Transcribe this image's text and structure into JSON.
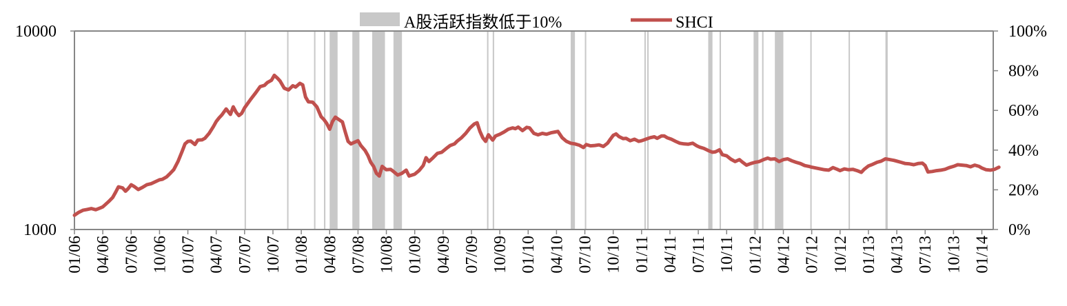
{
  "chart_data": {
    "type": "line",
    "title": "",
    "legend": {
      "placement": "top",
      "shade_label": "A股活跃指数低于10%",
      "line_label": "SHCI"
    },
    "colors": {
      "line": "#c0504d",
      "shade": "#c8c8c8",
      "axis": "#868686"
    },
    "x_ticks": [
      "01/06",
      "04/06",
      "07/06",
      "10/06",
      "01/07",
      "04/07",
      "07/07",
      "10/07",
      "01/08",
      "04/08",
      "07/08",
      "10/08",
      "01/09",
      "04/09",
      "07/09",
      "10/09",
      "01/10",
      "04/10",
      "07/10",
      "10/10",
      "01/11",
      "04/11",
      "07/11",
      "10/11",
      "01/12",
      "04/12",
      "07/12",
      "10/12",
      "01/13",
      "04/13",
      "07/13",
      "10/13",
      "01/14"
    ],
    "y_left": {
      "scale": "log",
      "min": 1000,
      "max": 10000,
      "ticks": [
        "1000",
        "10000"
      ]
    },
    "y_right": {
      "min": 0,
      "max": 100,
      "ticks": [
        "0%",
        "20%",
        "40%",
        "60%",
        "80%",
        "100%"
      ]
    },
    "x_range_quarters": [
      0,
      32.9
    ],
    "series": [
      {
        "name": "SHCI",
        "axis": "left",
        "points": [
          [
            0.0,
            1180
          ],
          [
            0.15,
            1220
          ],
          [
            0.3,
            1250
          ],
          [
            0.45,
            1262
          ],
          [
            0.6,
            1275
          ],
          [
            0.75,
            1258
          ],
          [
            0.9,
            1282
          ],
          [
            1.0,
            1300
          ],
          [
            1.2,
            1380
          ],
          [
            1.35,
            1450
          ],
          [
            1.45,
            1540
          ],
          [
            1.55,
            1640
          ],
          [
            1.7,
            1620
          ],
          [
            1.8,
            1560
          ],
          [
            1.9,
            1610
          ],
          [
            2.0,
            1680
          ],
          [
            2.1,
            1650
          ],
          [
            2.25,
            1590
          ],
          [
            2.4,
            1630
          ],
          [
            2.55,
            1680
          ],
          [
            2.7,
            1700
          ],
          [
            2.85,
            1740
          ],
          [
            3.0,
            1780
          ],
          [
            3.1,
            1790
          ],
          [
            3.25,
            1840
          ],
          [
            3.35,
            1900
          ],
          [
            3.5,
            2000
          ],
          [
            3.65,
            2200
          ],
          [
            3.8,
            2480
          ],
          [
            3.9,
            2700
          ],
          [
            4.0,
            2780
          ],
          [
            4.1,
            2790
          ],
          [
            4.25,
            2680
          ],
          [
            4.35,
            2820
          ],
          [
            4.5,
            2830
          ],
          [
            4.6,
            2880
          ],
          [
            4.75,
            3050
          ],
          [
            4.9,
            3300
          ],
          [
            5.0,
            3500
          ],
          [
            5.1,
            3650
          ],
          [
            5.2,
            3780
          ],
          [
            5.35,
            4050
          ],
          [
            5.5,
            3800
          ],
          [
            5.6,
            4150
          ],
          [
            5.7,
            3900
          ],
          [
            5.8,
            3750
          ],
          [
            5.9,
            3850
          ],
          [
            6.0,
            4100
          ],
          [
            6.2,
            4500
          ],
          [
            6.4,
            4900
          ],
          [
            6.55,
            5250
          ],
          [
            6.7,
            5320
          ],
          [
            6.8,
            5500
          ],
          [
            6.95,
            5650
          ],
          [
            7.05,
            5980
          ],
          [
            7.15,
            5800
          ],
          [
            7.25,
            5600
          ],
          [
            7.4,
            5150
          ],
          [
            7.55,
            5050
          ],
          [
            7.7,
            5300
          ],
          [
            7.8,
            5220
          ],
          [
            7.95,
            5450
          ],
          [
            8.05,
            5350
          ],
          [
            8.15,
            4650
          ],
          [
            8.25,
            4400
          ],
          [
            8.4,
            4380
          ],
          [
            8.55,
            4150
          ],
          [
            8.7,
            3700
          ],
          [
            8.8,
            3580
          ],
          [
            8.9,
            3420
          ],
          [
            9.0,
            3200
          ],
          [
            9.1,
            3500
          ],
          [
            9.2,
            3680
          ],
          [
            9.3,
            3600
          ],
          [
            9.45,
            3480
          ],
          [
            9.55,
            3100
          ],
          [
            9.65,
            2780
          ],
          [
            9.75,
            2700
          ],
          [
            9.85,
            2740
          ],
          [
            10.0,
            2800
          ],
          [
            10.1,
            2650
          ],
          [
            10.25,
            2500
          ],
          [
            10.35,
            2360
          ],
          [
            10.45,
            2180
          ],
          [
            10.55,
            2080
          ],
          [
            10.65,
            1920
          ],
          [
            10.75,
            1860
          ],
          [
            10.85,
            2080
          ],
          [
            11.0,
            2000
          ],
          [
            11.15,
            2010
          ],
          [
            11.25,
            1960
          ],
          [
            11.4,
            1880
          ],
          [
            11.55,
            1920
          ],
          [
            11.7,
            1990
          ],
          [
            11.8,
            1860
          ],
          [
            12.0,
            1900
          ],
          [
            12.15,
            1980
          ],
          [
            12.3,
            2100
          ],
          [
            12.4,
            2300
          ],
          [
            12.5,
            2200
          ],
          [
            12.65,
            2300
          ],
          [
            12.8,
            2420
          ],
          [
            12.95,
            2450
          ],
          [
            13.1,
            2550
          ],
          [
            13.25,
            2650
          ],
          [
            13.4,
            2700
          ],
          [
            13.5,
            2790
          ],
          [
            13.65,
            2900
          ],
          [
            13.8,
            3050
          ],
          [
            13.95,
            3250
          ],
          [
            14.1,
            3400
          ],
          [
            14.2,
            3450
          ],
          [
            14.3,
            3120
          ],
          [
            14.4,
            2900
          ],
          [
            14.5,
            2780
          ],
          [
            14.6,
            3000
          ],
          [
            14.75,
            2820
          ],
          [
            14.85,
            2960
          ],
          [
            15.0,
            3020
          ],
          [
            15.15,
            3100
          ],
          [
            15.3,
            3200
          ],
          [
            15.45,
            3250
          ],
          [
            15.55,
            3220
          ],
          [
            15.65,
            3280
          ],
          [
            15.8,
            3150
          ],
          [
            15.95,
            3270
          ],
          [
            16.05,
            3250
          ],
          [
            16.2,
            3050
          ],
          [
            16.35,
            3000
          ],
          [
            16.5,
            3050
          ],
          [
            16.65,
            3020
          ],
          [
            16.8,
            3070
          ],
          [
            16.95,
            3100
          ],
          [
            17.05,
            3120
          ],
          [
            17.2,
            2900
          ],
          [
            17.35,
            2780
          ],
          [
            17.5,
            2720
          ],
          [
            17.65,
            2700
          ],
          [
            17.8,
            2660
          ],
          [
            17.95,
            2590
          ],
          [
            18.05,
            2680
          ],
          [
            18.2,
            2640
          ],
          [
            18.35,
            2650
          ],
          [
            18.5,
            2670
          ],
          [
            18.65,
            2620
          ],
          [
            18.8,
            2720
          ],
          [
            18.9,
            2850
          ],
          [
            19.0,
            2980
          ],
          [
            19.1,
            3030
          ],
          [
            19.2,
            2940
          ],
          [
            19.35,
            2870
          ],
          [
            19.45,
            2880
          ],
          [
            19.6,
            2800
          ],
          [
            19.75,
            2850
          ],
          [
            19.9,
            2780
          ],
          [
            20.0,
            2800
          ],
          [
            20.15,
            2850
          ],
          [
            20.3,
            2900
          ],
          [
            20.45,
            2930
          ],
          [
            20.55,
            2880
          ],
          [
            20.7,
            2960
          ],
          [
            20.8,
            2960
          ],
          [
            20.9,
            2900
          ],
          [
            21.05,
            2850
          ],
          [
            21.2,
            2780
          ],
          [
            21.35,
            2720
          ],
          [
            21.5,
            2700
          ],
          [
            21.65,
            2690
          ],
          [
            21.8,
            2720
          ],
          [
            21.95,
            2640
          ],
          [
            22.05,
            2600
          ],
          [
            22.2,
            2560
          ],
          [
            22.35,
            2500
          ],
          [
            22.5,
            2450
          ],
          [
            22.6,
            2460
          ],
          [
            22.75,
            2520
          ],
          [
            22.85,
            2380
          ],
          [
            23.0,
            2350
          ],
          [
            23.15,
            2260
          ],
          [
            23.3,
            2200
          ],
          [
            23.45,
            2250
          ],
          [
            23.55,
            2190
          ],
          [
            23.7,
            2110
          ],
          [
            23.85,
            2150
          ],
          [
            24.0,
            2180
          ],
          [
            24.15,
            2200
          ],
          [
            24.3,
            2250
          ],
          [
            24.45,
            2290
          ],
          [
            24.55,
            2260
          ],
          [
            24.7,
            2270
          ],
          [
            24.85,
            2200
          ],
          [
            25.0,
            2250
          ],
          [
            25.15,
            2270
          ],
          [
            25.3,
            2220
          ],
          [
            25.45,
            2180
          ],
          [
            25.6,
            2150
          ],
          [
            25.75,
            2100
          ],
          [
            25.9,
            2080
          ],
          [
            26.0,
            2060
          ],
          [
            26.15,
            2040
          ],
          [
            26.3,
            2020
          ],
          [
            26.45,
            2000
          ],
          [
            26.6,
            1990
          ],
          [
            26.75,
            2050
          ],
          [
            26.9,
            2010
          ],
          [
            27.0,
            1980
          ],
          [
            27.15,
            2020
          ],
          [
            27.3,
            2000
          ],
          [
            27.45,
            2010
          ],
          [
            27.6,
            1980
          ],
          [
            27.75,
            1940
          ],
          [
            27.85,
            2010
          ],
          [
            28.0,
            2090
          ],
          [
            28.15,
            2130
          ],
          [
            28.3,
            2180
          ],
          [
            28.45,
            2210
          ],
          [
            28.6,
            2270
          ],
          [
            28.75,
            2250
          ],
          [
            28.9,
            2230
          ],
          [
            29.0,
            2210
          ],
          [
            29.15,
            2180
          ],
          [
            29.3,
            2150
          ],
          [
            29.45,
            2140
          ],
          [
            29.6,
            2120
          ],
          [
            29.75,
            2150
          ],
          [
            29.9,
            2160
          ],
          [
            30.0,
            2100
          ],
          [
            30.1,
            1950
          ],
          [
            30.25,
            1960
          ],
          [
            30.4,
            1980
          ],
          [
            30.55,
            1990
          ],
          [
            30.7,
            2010
          ],
          [
            30.85,
            2050
          ],
          [
            31.0,
            2080
          ],
          [
            31.15,
            2120
          ],
          [
            31.3,
            2110
          ],
          [
            31.45,
            2100
          ],
          [
            31.6,
            2070
          ],
          [
            31.75,
            2110
          ],
          [
            31.9,
            2080
          ],
          [
            32.0,
            2040
          ],
          [
            32.15,
            2000
          ],
          [
            32.3,
            1990
          ],
          [
            32.45,
            2010
          ],
          [
            32.6,
            2060
          ]
        ]
      }
    ],
    "shaded_periods": [
      [
        6.0,
        6.02
      ],
      [
        7.5,
        7.53
      ],
      [
        8.45,
        8.47
      ],
      [
        8.8,
        8.85
      ],
      [
        9.0,
        9.28
      ],
      [
        9.8,
        10.05
      ],
      [
        10.5,
        10.95
      ],
      [
        11.25,
        11.55
      ],
      [
        14.55,
        14.6
      ],
      [
        14.75,
        14.8
      ],
      [
        17.5,
        17.65
      ],
      [
        18.0,
        18.05
      ],
      [
        20.1,
        20.13
      ],
      [
        20.2,
        20.23
      ],
      [
        22.35,
        22.5
      ],
      [
        22.75,
        22.8
      ],
      [
        23.95,
        24.12
      ],
      [
        24.25,
        24.3
      ],
      [
        24.7,
        25.0
      ],
      [
        25.95,
        25.98
      ],
      [
        27.3,
        27.33
      ],
      [
        28.6,
        28.68
      ]
    ]
  }
}
